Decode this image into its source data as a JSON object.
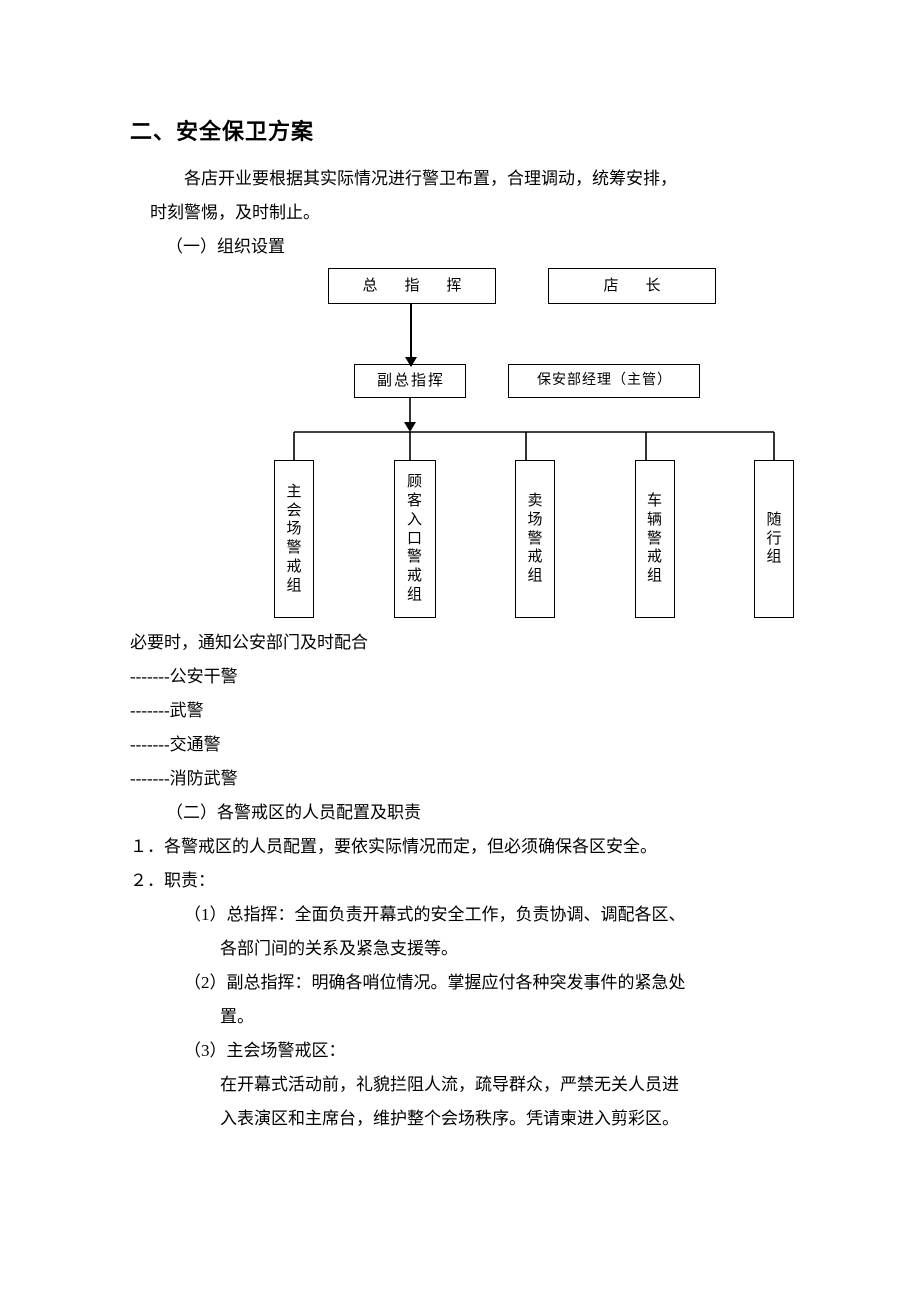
{
  "heading": "二、安全保卫方案",
  "intro_line1": "各店开业要根据其实际情况进行警卫布置，合理调动，统筹安排，",
  "intro_line2": "时刻警惕，及时制止。",
  "section1_title": "（一）组织设置",
  "org": {
    "top_left": "总　指　挥",
    "top_right": "店　长",
    "mid_left": "副总指挥",
    "mid_right": "保安部经理（主管）",
    "groups": [
      "主会场警戒组",
      "顾客入口警戒组",
      "卖场警戒组",
      "车辆警戒组",
      "随行组"
    ]
  },
  "coop_note": "必要时，通知公安部门及时配合",
  "coop_items": [
    "-------公安干警",
    "-------武警",
    "-------交通警",
    "-------消防武警"
  ],
  "section2_title": "（二）各警戒区的人员配置及职责",
  "list1": "１．各警戒区的人员配置，要依实际情况而定，但必须确保各区安全。",
  "list2": "２．职责：",
  "duty1_a": "（1）总指挥：全面负责开幕式的安全工作，负责协调、调配各区、",
  "duty1_b": "各部门间的关系及紧急支援等。",
  "duty2_a": "（2）副总指挥：明确各哨位情况。掌握应付各种突发事件的紧急处",
  "duty2_b": "置。",
  "duty3_a": "（3）主会场警戒区：",
  "duty3_b": "在开幕式活动前，礼貌拦阻人流，疏导群众，严禁无关人员进",
  "duty3_c": "入表演区和主席台，维护整个会场秩序。凭请柬进入剪彩区。",
  "colors": {
    "border": "#000000",
    "bg": "#ffffff",
    "text": "#000000"
  }
}
